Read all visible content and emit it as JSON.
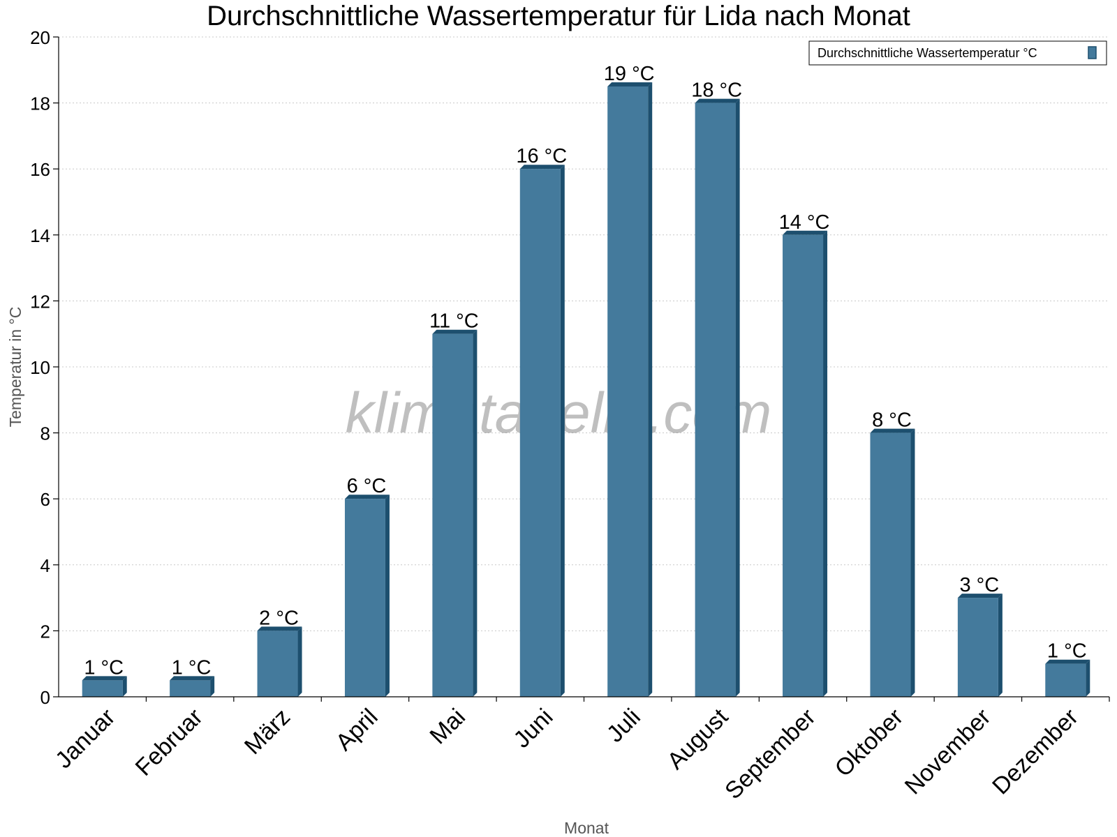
{
  "chart_data": {
    "type": "bar",
    "title": "Durchschnittliche Wassertemperatur für Lida nach Monat",
    "xlabel": "Monat",
    "ylabel": "Temperatur in °C",
    "ylim": [
      0,
      20
    ],
    "yticks": [
      0,
      2,
      4,
      6,
      8,
      10,
      12,
      14,
      16,
      18,
      20
    ],
    "grid": true,
    "legend_position": "top-right",
    "categories": [
      "Januar",
      "Februar",
      "März",
      "April",
      "Mai",
      "Juni",
      "Juli",
      "August",
      "September",
      "Oktober",
      "November",
      "Dezember"
    ],
    "series": [
      {
        "name": "Durchschnittliche Wassertemperatur °C",
        "values": [
          0.5,
          0.5,
          2,
          6,
          11,
          16,
          18.5,
          18,
          14,
          8,
          3,
          1
        ],
        "labels": [
          "1 °C",
          "1 °C",
          "2 °C",
          "6 °C",
          "11 °C",
          "16 °C",
          "19 °C",
          "18 °C",
          "14 °C",
          "8 °C",
          "3 °C",
          "1 °C"
        ]
      }
    ],
    "colors": {
      "bar_front": "#447a9c",
      "bar_side": "#1d4f6e",
      "bar_top": "#1d4f6e"
    }
  },
  "watermark": "klimatabelle.com"
}
